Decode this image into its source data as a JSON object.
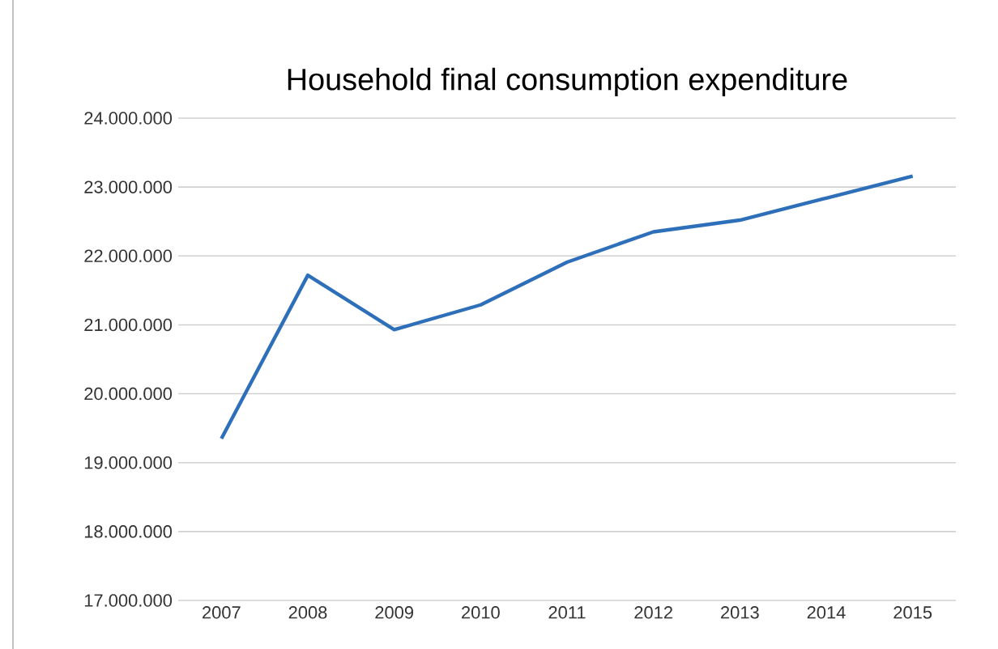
{
  "chart_data": {
    "type": "line",
    "title": "Household final consumption expenditure",
    "categories": [
      "2007",
      "2008",
      "2009",
      "2010",
      "2011",
      "2012",
      "2013",
      "2014",
      "2015"
    ],
    "series": [
      {
        "color": "#2e6fba",
        "values": [
          19350000,
          21720000,
          20930000,
          21290000,
          21910000,
          22350000,
          22520000,
          22840000,
          23160000
        ]
      }
    ],
    "ylim": [
      17000000,
      24000000
    ],
    "yticks": [
      {
        "value": 17000000,
        "label": "17.000.000"
      },
      {
        "value": 18000000,
        "label": "18.000.000"
      },
      {
        "value": 19000000,
        "label": "19.000.000"
      },
      {
        "value": 20000000,
        "label": "20.000.000"
      },
      {
        "value": 21000000,
        "label": "21.000.000"
      },
      {
        "value": 22000000,
        "label": "22.000.000"
      },
      {
        "value": 23000000,
        "label": "23.000.000"
      },
      {
        "value": 24000000,
        "label": "24.000.000"
      }
    ],
    "grid": "y",
    "legend": false,
    "marker": "none",
    "line_style": "solid"
  }
}
